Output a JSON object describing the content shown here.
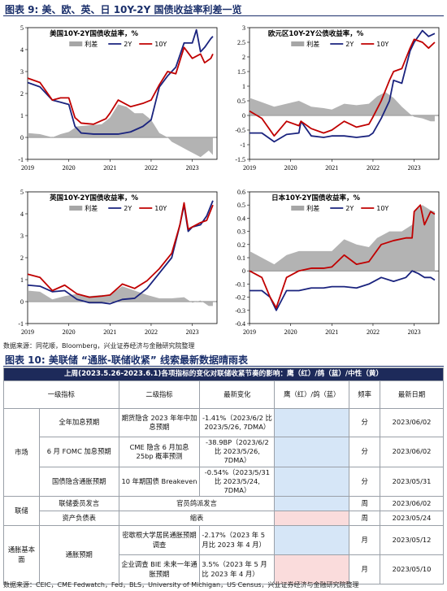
{
  "figure9": {
    "label": "图表 9:",
    "title": "美、欧、英、日 10Y-2Y 国债收益率利差一览"
  },
  "figure10": {
    "label": "图表 10:",
    "title": "美联储 “通胀-联储收紧” 线索最新数据晴雨表"
  },
  "source1": "数据来源：同花顺，Bloomberg，兴业证券经济与金融研究院整理",
  "source2": "数据来源：CEIC，CME Fedwatch，Fed，BLS，University of Michigan，US Census，兴业证券经济与金融研究院整理",
  "colors": {
    "spread": "#a6a6a6",
    "y2": "#1a237e",
    "y10": "#c00000",
    "navy": "#1d2a5a",
    "blue_cell": "#d6e6f7",
    "pink_cell": "#fadcdc"
  },
  "chart_data": [
    {
      "type": "line",
      "title": "美国10Y-2Y国债收益率，%",
      "x_ticks": [
        "2019",
        "2020",
        "2021",
        "2022",
        "2023"
      ],
      "y_ticks": [
        -1,
        0,
        1,
        2,
        3,
        4,
        5
      ],
      "ylim": [
        -1,
        5
      ],
      "xlim": [
        2019.0,
        2023.6
      ],
      "legend": [
        "利差",
        "2Y",
        "10Y"
      ],
      "legend_position": "top",
      "series": [
        {
          "name": "利差",
          "kind": "area",
          "x": [
            2019.0,
            2019.3,
            2019.6,
            2019.8,
            2020.0,
            2020.2,
            2020.5,
            2020.8,
            2021.0,
            2021.2,
            2021.4,
            2021.6,
            2021.8,
            2022.0,
            2022.2,
            2022.4,
            2022.5,
            2022.7,
            2022.9,
            2023.0,
            2023.2,
            2023.4,
            2023.5
          ],
          "y": [
            0.2,
            0.15,
            0.0,
            0.15,
            0.25,
            0.5,
            0.55,
            0.6,
            0.9,
            1.5,
            1.4,
            1.1,
            1.1,
            0.8,
            0.2,
            0.0,
            -0.2,
            -0.4,
            -0.6,
            -0.7,
            -0.9,
            -0.6,
            -0.8
          ]
        },
        {
          "name": "2Y",
          "kind": "line",
          "x": [
            2019.0,
            2019.3,
            2019.6,
            2019.8,
            2020.0,
            2020.15,
            2020.3,
            2020.6,
            2020.9,
            2021.2,
            2021.5,
            2021.8,
            2022.0,
            2022.2,
            2022.4,
            2022.6,
            2022.8,
            2023.0,
            2023.1,
            2023.2,
            2023.3,
            2023.45,
            2023.5
          ],
          "y": [
            2.5,
            2.3,
            1.7,
            1.6,
            1.5,
            0.5,
            0.2,
            0.15,
            0.15,
            0.15,
            0.25,
            0.5,
            0.8,
            2.3,
            2.8,
            3.2,
            4.3,
            4.3,
            4.9,
            3.9,
            4.1,
            4.5,
            4.6
          ]
        },
        {
          "name": "10Y",
          "kind": "line",
          "x": [
            2019.0,
            2019.3,
            2019.6,
            2019.8,
            2020.0,
            2020.15,
            2020.3,
            2020.6,
            2020.9,
            2021.0,
            2021.2,
            2021.5,
            2021.8,
            2022.0,
            2022.2,
            2022.4,
            2022.6,
            2022.8,
            2023.0,
            2023.2,
            2023.3,
            2023.45,
            2023.5
          ],
          "y": [
            2.7,
            2.5,
            1.7,
            1.8,
            1.8,
            0.9,
            0.65,
            0.6,
            0.85,
            1.1,
            1.7,
            1.4,
            1.55,
            1.7,
            2.4,
            3.0,
            2.9,
            4.1,
            3.6,
            3.8,
            3.4,
            3.6,
            3.8
          ]
        }
      ]
    },
    {
      "type": "line",
      "title": "欧元区10Y-2Y公债收益率，%",
      "x_ticks": [
        "2019",
        "2020",
        "2021",
        "2022",
        "2023"
      ],
      "y_ticks": [
        -1.5,
        -1,
        -0.5,
        0,
        0.5,
        1,
        1.5,
        2,
        2.5,
        3
      ],
      "ylim": [
        -1.5,
        3
      ],
      "xlim": [
        2019.0,
        2023.6
      ],
      "legend": [
        "利差",
        "2Y",
        "10Y"
      ],
      "legend_position": "top",
      "series": [
        {
          "name": "利差",
          "kind": "area",
          "x": [
            2019.0,
            2019.3,
            2019.6,
            2019.9,
            2020.2,
            2020.5,
            2020.8,
            2021.0,
            2021.3,
            2021.6,
            2021.9,
            2022.1,
            2022.3,
            2022.5,
            2022.7,
            2022.9,
            2023.0,
            2023.2,
            2023.4,
            2023.5
          ],
          "y": [
            0.6,
            0.45,
            0.3,
            0.4,
            0.5,
            0.3,
            0.25,
            0.2,
            0.4,
            0.35,
            0.4,
            0.65,
            0.8,
            0.6,
            0.3,
            0.05,
            -0.05,
            -0.1,
            -0.2,
            -0.2
          ]
        },
        {
          "name": "2Y",
          "kind": "line",
          "x": [
            2019.0,
            2019.3,
            2019.6,
            2019.9,
            2020.2,
            2020.25,
            2020.5,
            2020.8,
            2021.0,
            2021.3,
            2021.6,
            2021.9,
            2022.0,
            2022.2,
            2022.4,
            2022.5,
            2022.7,
            2022.9,
            2023.0,
            2023.2,
            2023.35,
            2023.5
          ],
          "y": [
            -0.6,
            -0.6,
            -0.9,
            -0.65,
            -0.6,
            -0.2,
            -0.7,
            -0.75,
            -0.7,
            -0.7,
            -0.75,
            -0.7,
            -0.6,
            -0.1,
            0.5,
            1.2,
            1.1,
            2.2,
            2.5,
            2.9,
            2.7,
            2.8
          ]
        },
        {
          "name": "10Y",
          "kind": "line",
          "x": [
            2019.0,
            2019.3,
            2019.6,
            2019.9,
            2020.2,
            2020.25,
            2020.5,
            2020.8,
            2021.0,
            2021.3,
            2021.6,
            2021.9,
            2022.0,
            2022.2,
            2022.4,
            2022.5,
            2022.7,
            2022.9,
            2023.0,
            2023.2,
            2023.35,
            2023.5
          ],
          "y": [
            0.15,
            -0.1,
            -0.7,
            -0.2,
            -0.35,
            -0.2,
            -0.45,
            -0.6,
            -0.5,
            -0.2,
            -0.4,
            -0.3,
            -0.05,
            0.5,
            1.2,
            1.5,
            1.6,
            2.3,
            2.6,
            2.5,
            2.3,
            2.5
          ]
        }
      ]
    },
    {
      "type": "line",
      "title": "英国10Y-2Y国债收益率，%",
      "x_ticks": [
        "2019",
        "2020",
        "2021",
        "2022",
        "2023"
      ],
      "y_ticks": [
        -1,
        0,
        1,
        2,
        3,
        4,
        5
      ],
      "ylim": [
        -1,
        5
      ],
      "xlim": [
        2019.0,
        2023.6
      ],
      "legend": [
        "利差",
        "2Y",
        "10Y"
      ],
      "legend_position": "top",
      "series": [
        {
          "name": "利差",
          "kind": "area",
          "x": [
            2019.0,
            2019.3,
            2019.6,
            2019.9,
            2020.2,
            2020.5,
            2020.8,
            2021.0,
            2021.3,
            2021.6,
            2021.9,
            2022.2,
            2022.5,
            2022.8,
            2023.0,
            2023.2,
            2023.4,
            2023.5
          ],
          "y": [
            0.5,
            0.45,
            0.1,
            0.25,
            0.35,
            0.25,
            0.3,
            0.3,
            0.7,
            0.5,
            0.3,
            0.15,
            0.15,
            0.2,
            -0.05,
            0.05,
            -0.2,
            -0.2
          ]
        },
        {
          "name": "2Y",
          "kind": "line",
          "x": [
            2019.0,
            2019.3,
            2019.6,
            2019.9,
            2020.2,
            2020.5,
            2020.8,
            2021.0,
            2021.3,
            2021.6,
            2021.9,
            2022.2,
            2022.5,
            2022.7,
            2022.8,
            2022.9,
            2023.0,
            2023.2,
            2023.35,
            2023.5
          ],
          "y": [
            0.75,
            0.7,
            0.45,
            0.5,
            0.1,
            -0.05,
            -0.05,
            -0.1,
            0.1,
            0.15,
            0.6,
            1.3,
            2.0,
            3.5,
            4.4,
            3.2,
            3.4,
            3.5,
            3.9,
            4.6
          ]
        },
        {
          "name": "10Y",
          "kind": "line",
          "x": [
            2019.0,
            2019.3,
            2019.6,
            2019.9,
            2020.2,
            2020.5,
            2020.8,
            2021.0,
            2021.3,
            2021.6,
            2021.9,
            2022.2,
            2022.5,
            2022.7,
            2022.8,
            2022.9,
            2023.0,
            2023.2,
            2023.35,
            2023.5
          ],
          "y": [
            1.25,
            1.1,
            0.5,
            0.75,
            0.35,
            0.2,
            0.25,
            0.3,
            0.8,
            0.6,
            0.95,
            1.5,
            2.2,
            3.5,
            4.5,
            3.3,
            3.4,
            3.6,
            3.7,
            4.4
          ]
        }
      ]
    },
    {
      "type": "line",
      "title": "日本10Y-2Y国债收益率，%",
      "x_ticks": [
        "2019",
        "2020",
        "2021",
        "2022",
        "2023"
      ],
      "y_ticks": [
        -0.4,
        -0.3,
        -0.2,
        -0.1,
        0,
        0.1,
        0.2,
        0.3,
        0.4,
        0.5,
        0.6
      ],
      "ylim": [
        -0.4,
        0.6
      ],
      "xlim": [
        2019.0,
        2023.6
      ],
      "legend": [
        "利差",
        "2Y",
        "10Y"
      ],
      "legend_position": "top",
      "series": [
        {
          "name": "利差",
          "kind": "area",
          "x": [
            2019.0,
            2019.3,
            2019.6,
            2019.9,
            2020.2,
            2020.5,
            2020.8,
            2021.0,
            2021.3,
            2021.6,
            2021.9,
            2022.1,
            2022.4,
            2022.7,
            2022.95,
            2023.0,
            2023.2,
            2023.4,
            2023.5
          ],
          "y": [
            0.15,
            0.1,
            0.05,
            0.12,
            0.15,
            0.15,
            0.15,
            0.15,
            0.24,
            0.2,
            0.18,
            0.25,
            0.3,
            0.3,
            0.35,
            0.45,
            0.5,
            0.46,
            0.45
          ]
        },
        {
          "name": "2Y",
          "kind": "line",
          "x": [
            2019.0,
            2019.3,
            2019.5,
            2019.65,
            2019.9,
            2020.2,
            2020.5,
            2020.8,
            2021.0,
            2021.3,
            2021.6,
            2021.9,
            2022.2,
            2022.5,
            2022.8,
            2022.95,
            2023.1,
            2023.25,
            2023.4,
            2023.5
          ],
          "y": [
            -0.15,
            -0.15,
            -0.2,
            -0.3,
            -0.15,
            -0.15,
            -0.13,
            -0.13,
            -0.12,
            -0.12,
            -0.13,
            -0.1,
            -0.05,
            -0.08,
            -0.05,
            0.0,
            -0.02,
            -0.05,
            -0.05,
            -0.07
          ]
        },
        {
          "name": "10Y",
          "kind": "line",
          "x": [
            2019.0,
            2019.3,
            2019.5,
            2019.65,
            2019.9,
            2020.2,
            2020.5,
            2020.8,
            2021.0,
            2021.3,
            2021.6,
            2021.9,
            2022.2,
            2022.5,
            2022.8,
            2022.95,
            2023.0,
            2023.15,
            2023.25,
            2023.4,
            2023.5
          ],
          "y": [
            0.0,
            -0.05,
            -0.2,
            -0.28,
            -0.05,
            0.0,
            0.02,
            0.02,
            0.03,
            0.12,
            0.05,
            0.07,
            0.2,
            0.23,
            0.25,
            0.25,
            0.45,
            0.5,
            0.35,
            0.45,
            0.43
          ]
        }
      ]
    }
  ],
  "table": {
    "banner": "上周(2023.5.26-2023.6.1)各项指标的变化对联储收紧节奏的影响：鹰（红）/鸽（蓝）/中性（黄）",
    "headers": [
      "一级指标",
      "二级指标",
      "最新变化",
      "鹰（红）/鸽（蓝）",
      "频率",
      "最新日期"
    ],
    "groups": {
      "market": "市场",
      "fed": "联储",
      "inflation": "通胀基本面"
    },
    "rows": [
      {
        "l1": "全年加息预期",
        "l2": "期货隐含 2023 年年中加息预期",
        "change": "-1.41%（2023/6/2 比 2023/5/26, 7DMA）",
        "freq": "分",
        "date": "2023/06/02"
      },
      {
        "l1": "6 月 FOMC 加息预期",
        "l2": "CME 隐含 6 月加息 25bp 概率预测",
        "change": "-38.9BP（2023/6/2 比 2023/5/26, 7DMA）",
        "freq": "分",
        "date": "2023/06/02"
      },
      {
        "l1": "国债隐含通胀预期",
        "l2": "10 年期国债 Breakeven",
        "change": "-0.54%（2023/5/31 比 2023/5/24, 7DMA）",
        "freq": "分",
        "date": "2023/05/31"
      },
      {
        "l1": "联储委员发言",
        "change": "官员鸽派发言",
        "freq": "周",
        "date": "2023/06/02"
      },
      {
        "l1": "资产负债表",
        "change": "缩表",
        "freq": "周",
        "date": "2023/05/24"
      },
      {
        "l1": "通胀预期",
        "l2": "密歇根大学居民通胀预期调查",
        "change": "-2.17%（2023 年 5 月比 2023 年 4 月）",
        "freq": "月",
        "date": "2023/05/12"
      },
      {
        "l2": "企业调查 BIE 未来一年通胀预期",
        "change": "3.5%（2023 年 5 月比 2023 年 4 月）",
        "freq": "月",
        "date": "2023/05/10"
      }
    ]
  }
}
